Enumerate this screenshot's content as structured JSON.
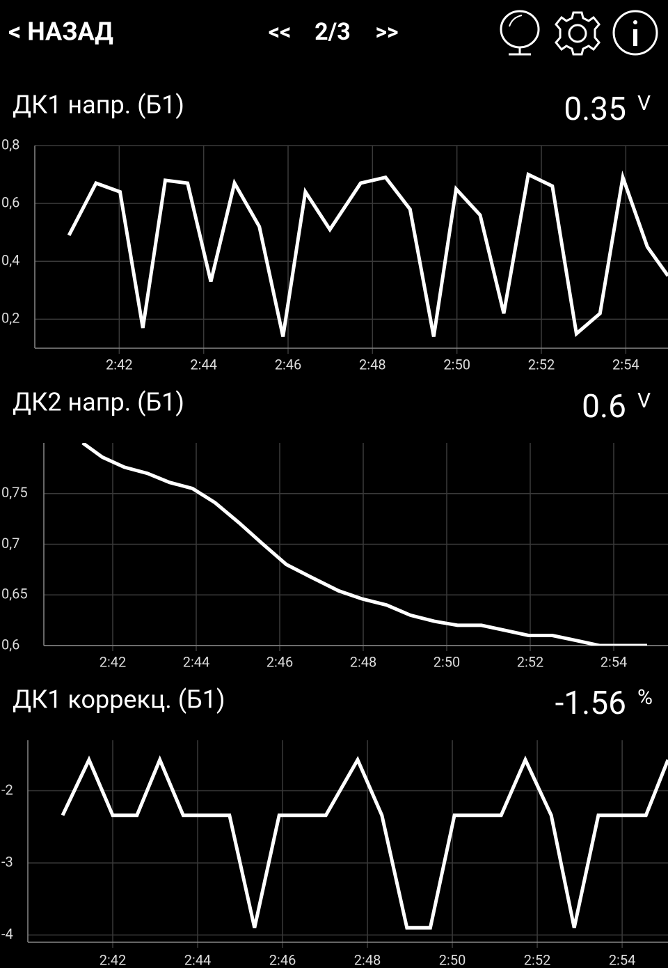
{
  "header": {
    "back": "< НАЗАД",
    "prev": "<<",
    "page": "2/3",
    "next": ">>"
  },
  "chart_data": [
    {
      "type": "line",
      "title": "ДК1 напр. (Б1)",
      "value": 0.35,
      "unit": "V",
      "color": "#ffffff",
      "grid": true,
      "x": [
        160.81,
        161.45,
        162.02,
        162.56,
        163.09,
        163.62,
        164.17,
        164.73,
        165.32,
        165.88,
        166.41,
        166.99,
        167.72,
        168.31,
        168.89,
        169.45,
        169.98,
        170.55,
        171.11,
        171.69,
        172.26,
        172.83,
        173.39,
        173.93,
        174.51,
        175.0
      ],
      "values": [
        0.49,
        0.67,
        0.64,
        0.17,
        0.68,
        0.67,
        0.33,
        0.67,
        0.52,
        0.14,
        0.64,
        0.51,
        0.67,
        0.69,
        0.58,
        0.14,
        0.65,
        0.56,
        0.22,
        0.7,
        0.66,
        0.15,
        0.22,
        0.69,
        0.45,
        0.35
      ],
      "xlim": [
        160,
        175
      ],
      "ylim": [
        0.1,
        0.8
      ],
      "xticks": [
        {
          "value": 162,
          "label": "2:42"
        },
        {
          "value": 164,
          "label": "2:44"
        },
        {
          "value": 166,
          "label": "2:46"
        },
        {
          "value": 168,
          "label": "2:48"
        },
        {
          "value": 170,
          "label": "2:50"
        },
        {
          "value": 172,
          "label": "2:52"
        },
        {
          "value": 174,
          "label": "2:54"
        }
      ],
      "yticks": [
        {
          "value": 0.2,
          "label": "0,2"
        },
        {
          "value": 0.4,
          "label": "0,4"
        },
        {
          "value": 0.6,
          "label": "0,6"
        },
        {
          "value": 0.8,
          "label": "0,8"
        }
      ]
    },
    {
      "type": "line",
      "title": "ДК2 напр. (Б1)",
      "value": 0.6,
      "unit": "V",
      "color": "#ffffff",
      "grid": true,
      "x": [
        161.28,
        161.75,
        162.28,
        162.83,
        163.36,
        163.91,
        164.45,
        165.03,
        165.6,
        166.16,
        166.73,
        167.41,
        167.98,
        168.56,
        169.13,
        169.7,
        170.26,
        170.83,
        171.4,
        171.96,
        172.53,
        173.1,
        173.66,
        174.8
      ],
      "values": [
        0.8,
        0.786,
        0.776,
        0.77,
        0.761,
        0.755,
        0.741,
        0.721,
        0.7,
        0.68,
        0.668,
        0.654,
        0.646,
        0.64,
        0.63,
        0.624,
        0.62,
        0.62,
        0.615,
        0.61,
        0.61,
        0.605,
        0.6,
        0.6
      ],
      "xlim": [
        160.35,
        175.3
      ],
      "ylim": [
        0.6,
        0.8
      ],
      "xticks": [
        {
          "value": 162,
          "label": "2:42"
        },
        {
          "value": 164,
          "label": "2:44"
        },
        {
          "value": 166,
          "label": "2:46"
        },
        {
          "value": 168,
          "label": "2:48"
        },
        {
          "value": 170,
          "label": "2:50"
        },
        {
          "value": 172,
          "label": "2:52"
        },
        {
          "value": 174,
          "label": "2:54"
        }
      ],
      "yticks": [
        {
          "value": 0.6,
          "label": "0,6"
        },
        {
          "value": 0.65,
          "label": "0,65"
        },
        {
          "value": 0.7,
          "label": "0,7"
        },
        {
          "value": 0.75,
          "label": "0,75"
        }
      ]
    },
    {
      "type": "line",
      "title": "ДК1 коррекц. (Б1)",
      "value": -1.56,
      "unit": "%",
      "color": "#ffffff",
      "grid": true,
      "x": [
        160.82,
        161.44,
        162.0,
        162.57,
        163.11,
        163.66,
        164.75,
        165.34,
        165.92,
        167.02,
        167.77,
        168.34,
        168.93,
        169.48,
        170.05,
        171.15,
        171.72,
        172.33,
        172.87,
        173.44,
        174.56,
        175.08
      ],
      "values": [
        -2.34,
        -1.57,
        -2.34,
        -2.34,
        -1.57,
        -2.34,
        -2.34,
        -3.9,
        -2.34,
        -2.34,
        -1.57,
        -2.34,
        -3.9,
        -3.9,
        -2.34,
        -2.34,
        -1.57,
        -2.34,
        -3.9,
        -2.34,
        -2.34,
        -1.57
      ],
      "xlim": [
        160,
        175.08
      ],
      "ylim": [
        -4.1,
        -1.3
      ],
      "xticks": [
        {
          "value": 162,
          "label": "2:42"
        },
        {
          "value": 164,
          "label": "2:44"
        },
        {
          "value": 166,
          "label": "2:46"
        },
        {
          "value": 168,
          "label": "2:48"
        },
        {
          "value": 170,
          "label": "2:50"
        },
        {
          "value": 172,
          "label": "2:52"
        },
        {
          "value": 174,
          "label": "2:54"
        }
      ],
      "yticks": [
        -4,
        -3,
        -2
      ]
    }
  ]
}
